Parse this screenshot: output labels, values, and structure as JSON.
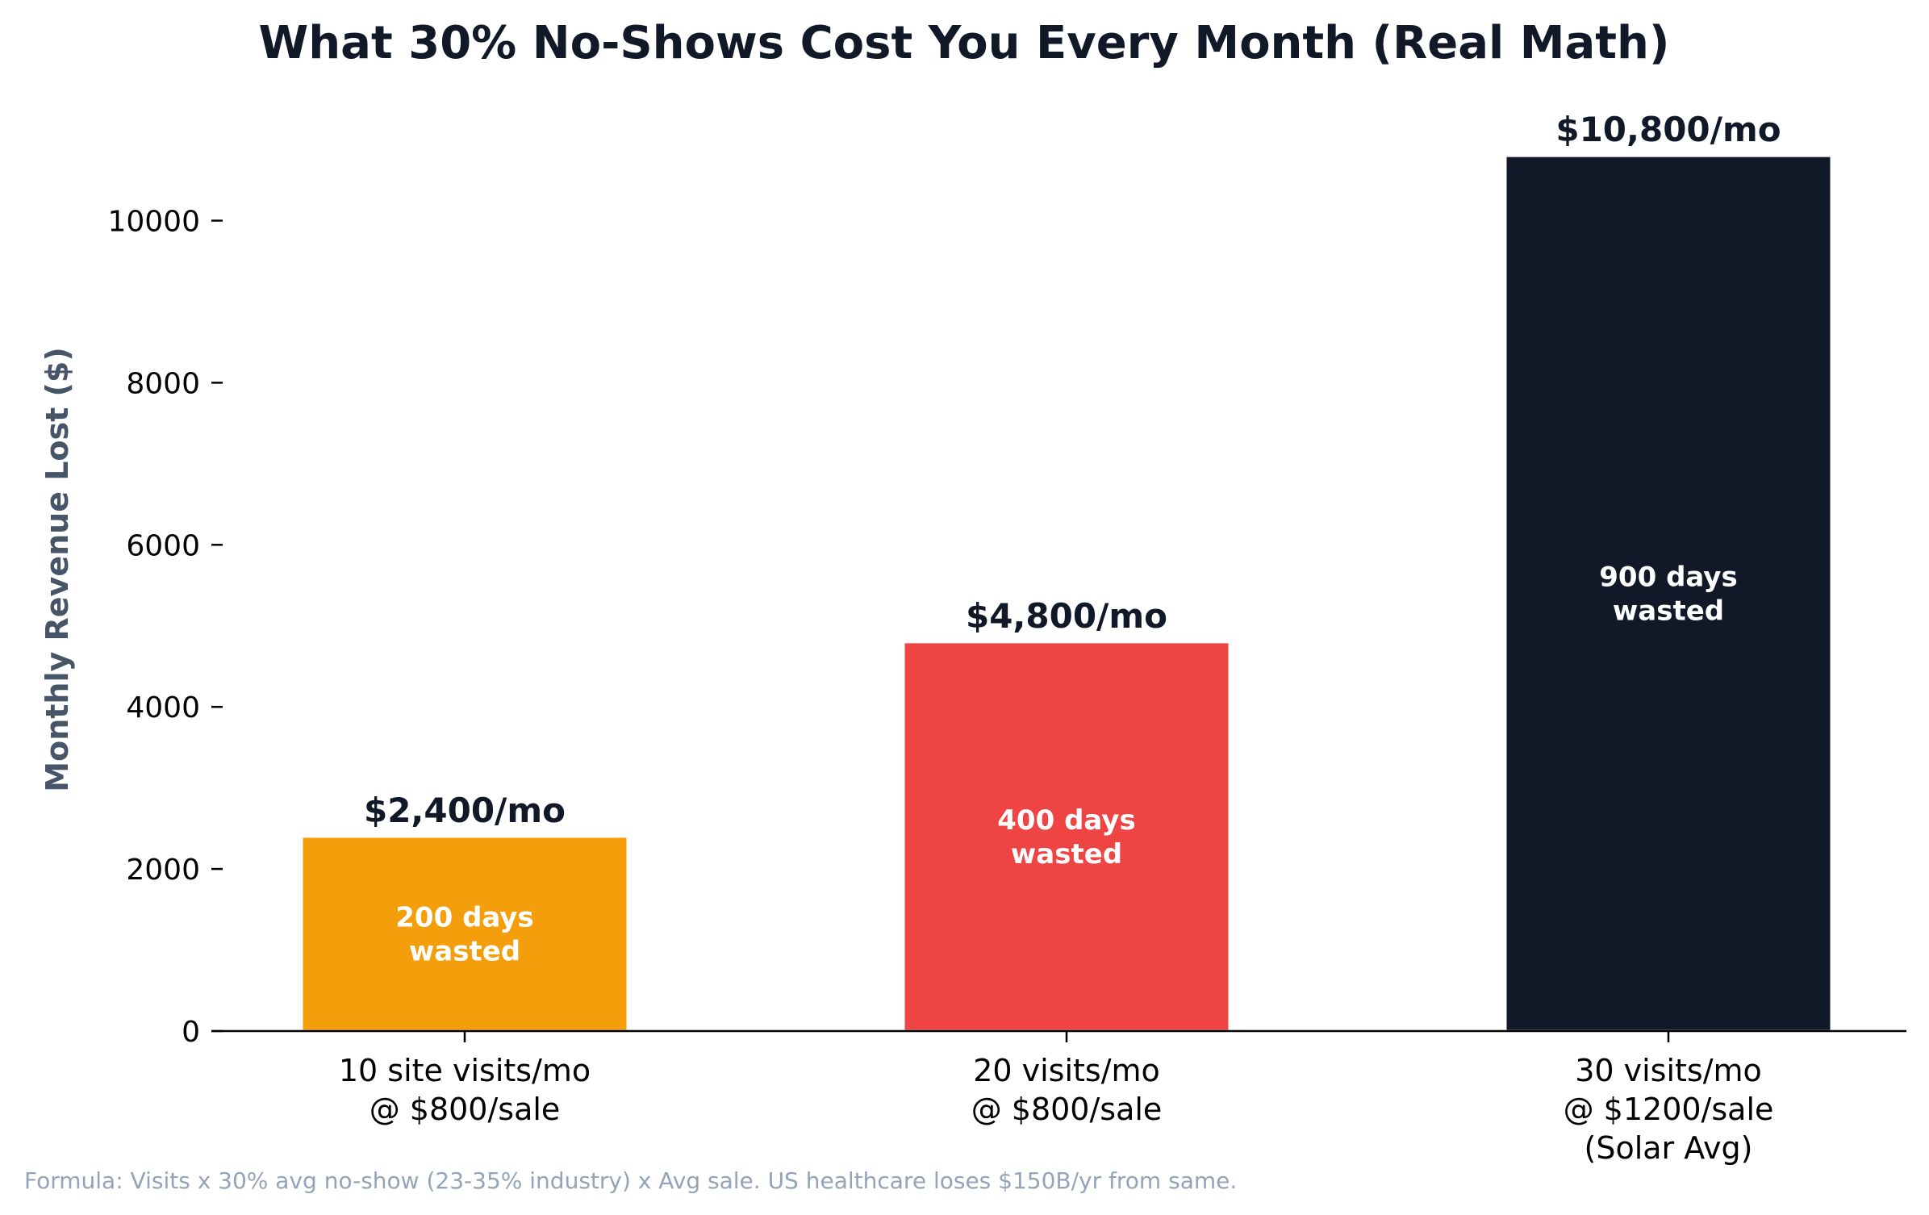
{
  "chart_data": {
    "type": "bar",
    "title": "What 30% No-Shows Cost You Every Month (Real Math)",
    "xlabel": "",
    "ylabel": "Monthly Revenue Lost ($)",
    "ylim": [
      0,
      11300
    ],
    "yticks": [
      0,
      2000,
      4000,
      6000,
      8000,
      10000
    ],
    "grid": false,
    "categories": [
      [
        "10 site visits/mo",
        "@ $800/sale"
      ],
      [
        "20 visits/mo",
        "@ $800/sale"
      ],
      [
        "30 visits/mo",
        "@ $1200/sale",
        "(Solar Avg)"
      ]
    ],
    "values": [
      2400,
      4800,
      10800
    ],
    "value_labels": [
      "$2,400/mo",
      "$4,800/mo",
      "$10,800/mo"
    ],
    "bar_annotations": [
      [
        "200 days",
        "wasted"
      ],
      [
        "400 days",
        "wasted"
      ],
      [
        "900 days",
        "wasted"
      ]
    ],
    "colors": [
      "#f59e0b",
      "#ef4444",
      "#111827"
    ],
    "footnote": "Formula: Visits x 30% avg no-show (23-35% industry) x Avg sale. US healthcare loses $150B/yr from same."
  }
}
